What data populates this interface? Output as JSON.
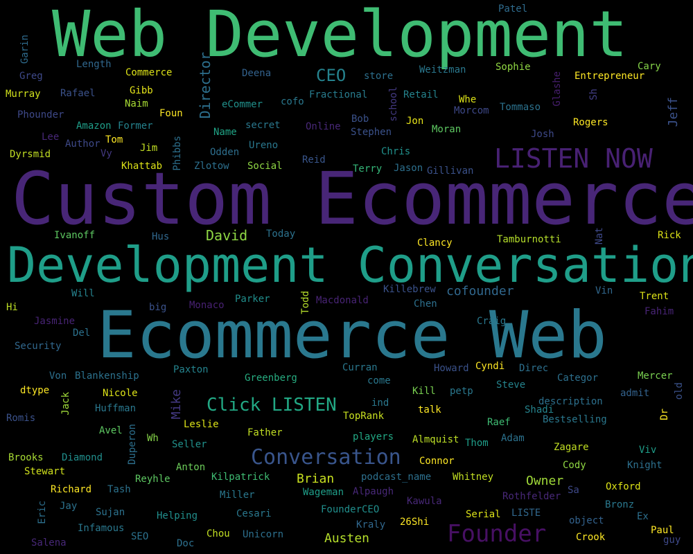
{
  "words": [
    {
      "text": "Web Development",
      "color": "#3fbc73"
    },
    {
      "text": "Custom Ecommerce",
      "color": "#482677"
    },
    {
      "text": "Development Conversation",
      "color": "#1f9e89"
    },
    {
      "text": "Ecommerce Web",
      "color": "#2a788e"
    },
    {
      "text": "LISTEN NOW",
      "color": "#482173"
    },
    {
      "text": "Conversation",
      "color": "#39558c"
    },
    {
      "text": "Founder",
      "color": "#471063"
    },
    {
      "text": "Click LISTEN",
      "color": "#22a884"
    },
    {
      "text": "CEO",
      "color": "#25838e"
    },
    {
      "text": "David",
      "color": "#8fd744"
    },
    {
      "text": "Director",
      "color": "#2d708e"
    },
    {
      "text": "Jeff",
      "color": "#3b528b"
    },
    {
      "text": "cofounder",
      "color": "#31688e"
    },
    {
      "text": "Brian",
      "color": "#c8e020"
    },
    {
      "text": "Owner",
      "color": "#a0da39"
    },
    {
      "text": "Austen",
      "color": "#b5de2b"
    },
    {
      "text": "Mike",
      "color": "#443983"
    },
    {
      "text": "Todd",
      "color": "#b5de2b"
    },
    {
      "text": "Patel",
      "color": "#2f6c8e"
    },
    {
      "text": "Garin",
      "color": "#2f6c8e"
    },
    {
      "text": "Length",
      "color": "#31688e"
    },
    {
      "text": "Commerce",
      "color": "#dde318"
    },
    {
      "text": "Deena",
      "color": "#33628d"
    },
    {
      "text": "store",
      "color": "#2d708e"
    },
    {
      "text": "Weitzman",
      "color": "#2a788e"
    },
    {
      "text": "Sophie",
      "color": "#90d743"
    },
    {
      "text": "Cary",
      "color": "#86d549"
    },
    {
      "text": "Greg",
      "color": "#3e4989"
    },
    {
      "text": "Entrepreneur",
      "color": "#fde725"
    },
    {
      "text": "Glashe",
      "color": "#481f70"
    },
    {
      "text": "Murray",
      "color": "#d0e11c"
    },
    {
      "text": "Rafael",
      "color": "#3b528b"
    },
    {
      "text": "Gibb",
      "color": "#e5e419"
    },
    {
      "text": "Fractional",
      "color": "#287c8e"
    },
    {
      "text": "Retail",
      "color": "#25848e"
    },
    {
      "text": "school",
      "color": "#443a83"
    },
    {
      "text": "Sh",
      "color": "#433e85"
    },
    {
      "text": "Whe",
      "color": "#dde318"
    },
    {
      "text": "Naim",
      "color": "#a8db34"
    },
    {
      "text": "eCommer",
      "color": "#21918c"
    },
    {
      "text": "cofo",
      "color": "#2a788e"
    },
    {
      "text": "Tommaso",
      "color": "#2c728e"
    },
    {
      "text": "Morcom",
      "color": "#3e4989"
    },
    {
      "text": "Phounder",
      "color": "#3e4989"
    },
    {
      "text": "Foun",
      "color": "#fde725"
    },
    {
      "text": "Bob",
      "color": "#3b528b"
    },
    {
      "text": "Amazon",
      "color": "#1f9e89"
    },
    {
      "text": "Former",
      "color": "#25838e"
    },
    {
      "text": "Online",
      "color": "#482878"
    },
    {
      "text": "Jon",
      "color": "#e7e419"
    },
    {
      "text": "Rogers",
      "color": "#fde725"
    },
    {
      "text": "Lee",
      "color": "#482878"
    },
    {
      "text": "Name",
      "color": "#20a486"
    },
    {
      "text": "secret",
      "color": "#2a788e"
    },
    {
      "text": "Stephen",
      "color": "#3b528b"
    },
    {
      "text": "Moran",
      "color": "#5ec962"
    },
    {
      "text": "Author",
      "color": "#3e4989"
    },
    {
      "text": "Tom",
      "color": "#fde725"
    },
    {
      "text": "Josh",
      "color": "#3e4989"
    },
    {
      "text": "Dyrsmid",
      "color": "#c2df23"
    },
    {
      "text": "Jim",
      "color": "#c2df23"
    },
    {
      "text": "Phibbs",
      "color": "#2d708e"
    },
    {
      "text": "Odden",
      "color": "#2e6f8e"
    },
    {
      "text": "Ureno",
      "color": "#2a788e"
    },
    {
      "text": "Chris",
      "color": "#21918c"
    },
    {
      "text": "Vy",
      "color": "#443983"
    },
    {
      "text": "Khattab",
      "color": "#dde318"
    },
    {
      "text": "Zlotow",
      "color": "#2d708e"
    },
    {
      "text": "Social",
      "color": "#8fd744"
    },
    {
      "text": "Reid",
      "color": "#39568c"
    },
    {
      "text": "Terry",
      "color": "#35b779"
    },
    {
      "text": "Jason",
      "color": "#2d708e"
    },
    {
      "text": "Gillivan",
      "color": "#3b528b"
    },
    {
      "text": "Ivanoff",
      "color": "#5ec962"
    },
    {
      "text": "Hus",
      "color": "#31688e"
    },
    {
      "text": "Today",
      "color": "#2c728e"
    },
    {
      "text": "Clancy",
      "color": "#fde725"
    },
    {
      "text": "Tamburnotti",
      "color": "#b5de2b"
    },
    {
      "text": "Nat",
      "color": "#3e4989"
    },
    {
      "text": "Rick",
      "color": "#dde318"
    },
    {
      "text": "Killebrew",
      "color": "#3b528b"
    },
    {
      "text": "Vin",
      "color": "#31688e"
    },
    {
      "text": "Will",
      "color": "#26828e"
    },
    {
      "text": "Hi",
      "color": "#bddf26"
    },
    {
      "text": "big",
      "color": "#3b528b"
    },
    {
      "text": "Monaco",
      "color": "#482173"
    },
    {
      "text": "Parker",
      "color": "#218f8d"
    },
    {
      "text": "Macdonald",
      "color": "#482475"
    },
    {
      "text": "Chen",
      "color": "#2d708e"
    },
    {
      "text": "Trent",
      "color": "#dde318"
    },
    {
      "text": "Fahim",
      "color": "#482475"
    },
    {
      "text": "Jasmine",
      "color": "#482475"
    },
    {
      "text": "Craig",
      "color": "#2a788e"
    },
    {
      "text": "Security",
      "color": "#31688e"
    },
    {
      "text": "Del",
      "color": "#2c728e"
    },
    {
      "text": "Paxton",
      "color": "#25848e"
    },
    {
      "text": "Curran",
      "color": "#2a788e"
    },
    {
      "text": "Howard",
      "color": "#3b528b"
    },
    {
      "text": "Cyndi",
      "color": "#fde725"
    },
    {
      "text": "Direc",
      "color": "#2d708e"
    },
    {
      "text": "Von",
      "color": "#2d708e"
    },
    {
      "text": "Blankenship",
      "color": "#2c728e"
    },
    {
      "text": "Greenberg",
      "color": "#27ad81"
    },
    {
      "text": "come",
      "color": "#2a788e"
    },
    {
      "text": "Categor",
      "color": "#2d708e"
    },
    {
      "text": "Mercer",
      "color": "#7ad151"
    },
    {
      "text": "old",
      "color": "#3b528b"
    },
    {
      "text": "dtype",
      "color": "#fde725"
    },
    {
      "text": "Jack",
      "color": "#a0da39"
    },
    {
      "text": "Nicole",
      "color": "#dde318"
    },
    {
      "text": "Steve",
      "color": "#25848e"
    },
    {
      "text": "Kill",
      "color": "#7ad151"
    },
    {
      "text": "petp",
      "color": "#2a788e"
    },
    {
      "text": "admit",
      "color": "#33628d"
    },
    {
      "text": "Huffman",
      "color": "#2a788e"
    },
    {
      "text": "ind",
      "color": "#2a788e"
    },
    {
      "text": "description",
      "color": "#2d708e"
    },
    {
      "text": "Romis",
      "color": "#3b528b"
    },
    {
      "text": "TopRank",
      "color": "#c8e020"
    },
    {
      "text": "talk",
      "color": "#fde725"
    },
    {
      "text": "Shadi",
      "color": "#25848e"
    },
    {
      "text": "Dr",
      "color": "#fde725"
    },
    {
      "text": "Leslie",
      "color": "#dde318"
    },
    {
      "text": "Raef",
      "color": "#3fbc73"
    },
    {
      "text": "Bestselling",
      "color": "#2a788e"
    },
    {
      "text": "Avel",
      "color": "#5ec962"
    },
    {
      "text": "Father",
      "color": "#c2df23"
    },
    {
      "text": "Duperon",
      "color": "#2d708e"
    },
    {
      "text": "Wh",
      "color": "#86d549"
    },
    {
      "text": "Seller",
      "color": "#21918c"
    },
    {
      "text": "players",
      "color": "#22a884"
    },
    {
      "text": "Almquist",
      "color": "#bddf26"
    },
    {
      "text": "Thom",
      "color": "#1f9e89"
    },
    {
      "text": "Adam",
      "color": "#2c728e"
    },
    {
      "text": "Zagare",
      "color": "#c2df23"
    },
    {
      "text": "Brooks",
      "color": "#a8db34"
    },
    {
      "text": "Diamond",
      "color": "#218f8d"
    },
    {
      "text": "Viv",
      "color": "#1f9e89"
    },
    {
      "text": "Connor",
      "color": "#fde725"
    },
    {
      "text": "Stewart",
      "color": "#d0e11c"
    },
    {
      "text": "Anton",
      "color": "#6ccd5a"
    },
    {
      "text": "Cody",
      "color": "#90d743"
    },
    {
      "text": "Knight",
      "color": "#2d708e"
    },
    {
      "text": "Reyhle",
      "color": "#5ec962"
    },
    {
      "text": "Kilpatrick",
      "color": "#3fbc73"
    },
    {
      "text": "podcast_name",
      "color": "#2d708e"
    },
    {
      "text": "Whitney",
      "color": "#c2df23"
    },
    {
      "text": "Oxford",
      "color": "#dde318"
    },
    {
      "text": "Richard",
      "color": "#fde725"
    },
    {
      "text": "Tash",
      "color": "#2c728e"
    },
    {
      "text": "Wageman",
      "color": "#1f9e89"
    },
    {
      "text": "Alpaugh",
      "color": "#482878"
    },
    {
      "text": "Sa",
      "color": "#3e4989"
    },
    {
      "text": "Miller",
      "color": "#2a788e"
    },
    {
      "text": "Rothfelder",
      "color": "#482878"
    },
    {
      "text": "Kawula",
      "color": "#482878"
    },
    {
      "text": "Bronz",
      "color": "#2a788e"
    },
    {
      "text": "Eric",
      "color": "#2d708e"
    },
    {
      "text": "Jay",
      "color": "#2c728e"
    },
    {
      "text": "Sujan",
      "color": "#2c728e"
    },
    {
      "text": "Helping",
      "color": "#218f8d"
    },
    {
      "text": "Cesari",
      "color": "#2a788e"
    },
    {
      "text": "FounderCEO",
      "color": "#218f8d"
    },
    {
      "text": "Serial",
      "color": "#dde318"
    },
    {
      "text": "LISTE",
      "color": "#31688e"
    },
    {
      "text": "object",
      "color": "#33628d"
    },
    {
      "text": "Ex",
      "color": "#2d708e"
    },
    {
      "text": "Infamous",
      "color": "#2a788e"
    },
    {
      "text": "SEO",
      "color": "#2c728e"
    },
    {
      "text": "Chou",
      "color": "#c2df23"
    },
    {
      "text": "Unicorn",
      "color": "#2d708e"
    },
    {
      "text": "Kraly",
      "color": "#31688e"
    },
    {
      "text": "26Shi",
      "color": "#fde725"
    },
    {
      "text": "Crook",
      "color": "#fde725"
    },
    {
      "text": "Paul",
      "color": "#fde725"
    },
    {
      "text": "guy",
      "color": "#3e4989"
    },
    {
      "text": "Salena",
      "color": "#482878"
    },
    {
      "text": "Doc",
      "color": "#2d708e"
    }
  ]
}
